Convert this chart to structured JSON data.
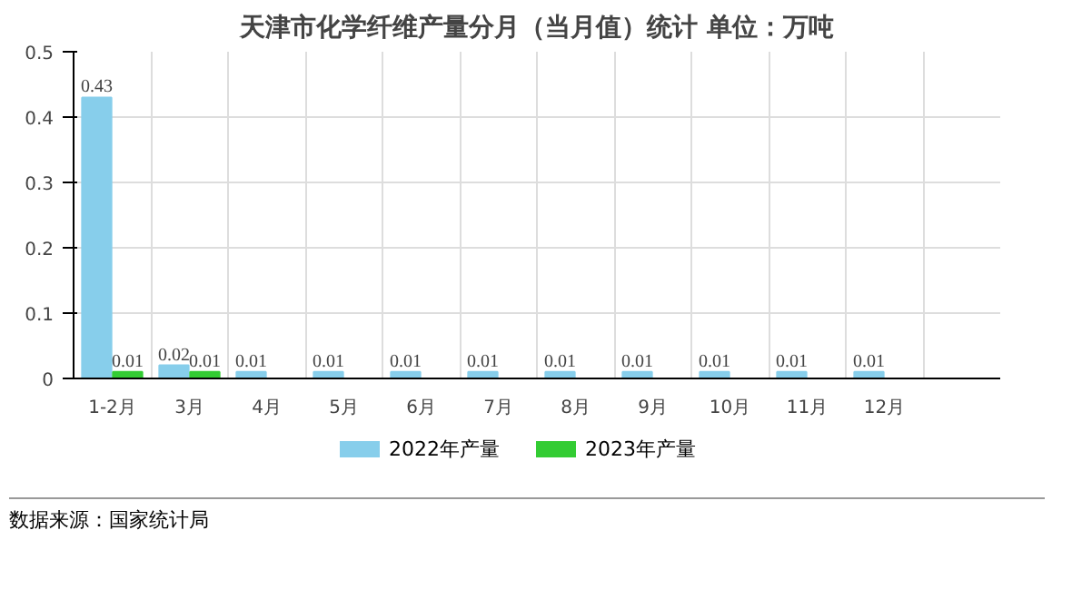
{
  "chart_data": {
    "type": "bar",
    "title": "天津市化学纤维产量分月（当月值）统计 单位：万吨",
    "categories": [
      "1-2月",
      "3月",
      "4月",
      "5月",
      "6月",
      "7月",
      "8月",
      "9月",
      "10月",
      "11月",
      "12月",
      null
    ],
    "series": [
      {
        "name": "2022年产量",
        "color": "#87ceeb",
        "values": [
          0.43,
          0.02,
          0.01,
          0.01,
          0.01,
          0.01,
          0.01,
          0.01,
          0.01,
          0.01,
          0.01,
          null
        ]
      },
      {
        "name": "2023年产量",
        "color": "#33cc33",
        "values": [
          0.01,
          0.01,
          null,
          null,
          null,
          null,
          null,
          null,
          null,
          null,
          null,
          null
        ]
      }
    ],
    "ylim": [
      0,
      0.5
    ],
    "yticks": [
      0,
      0.1,
      0.2,
      0.3,
      0.4,
      0.5
    ],
    "grid": true,
    "legend": "bottom",
    "data_labels": true,
    "annotations": [
      "数据来源：国家统计局"
    ]
  }
}
